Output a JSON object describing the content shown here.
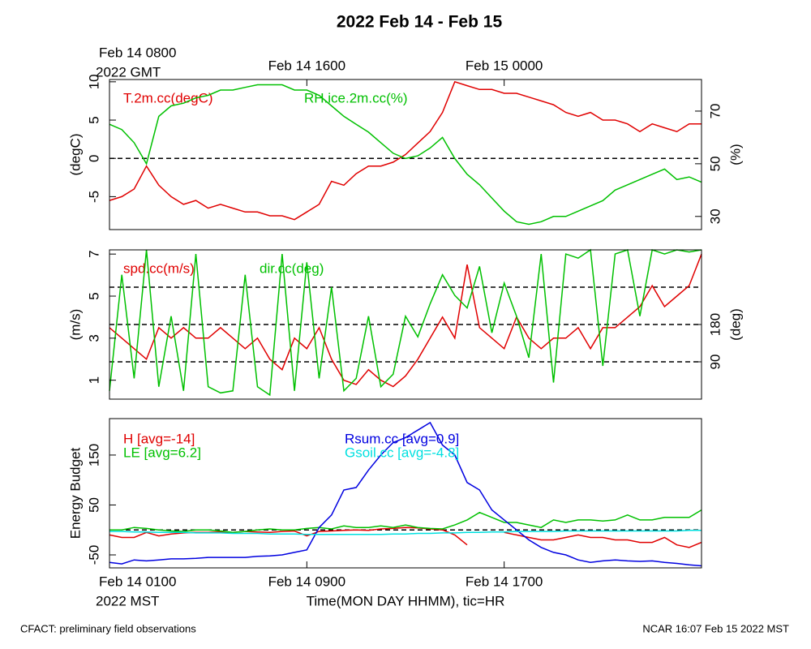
{
  "title": "2022 Feb 14 - Feb 15",
  "footer_left": "CFACT: preliminary field observations",
  "footer_right": "NCAR 16:07 Feb 15 2022 MST",
  "chart_data": [
    {
      "type": "line",
      "top_axis_note": "2022 GMT",
      "xlim": [
        0,
        24
      ],
      "x2ticks": [
        {
          "value": 0,
          "label": "Feb 14 0800"
        },
        {
          "value": 8,
          "label": "Feb 14 1600"
        },
        {
          "value": 16,
          "label": "Feb 15 0000"
        }
      ],
      "ylabel": "(degC)",
      "y2label": "(%)",
      "ylim": [
        -9.3,
        10.3
      ],
      "yticks": [
        -5,
        0,
        5,
        10
      ],
      "y2lim": [
        25,
        82
      ],
      "y2ticks": [
        30,
        50,
        70
      ],
      "hlines": [
        0
      ],
      "x": [
        0,
        0.5,
        1,
        1.5,
        2,
        2.5,
        3,
        3.5,
        4,
        4.5,
        5,
        5.5,
        6,
        6.5,
        7,
        7.5,
        8,
        8.5,
        9,
        9.5,
        10,
        10.5,
        11,
        11.5,
        12,
        12.5,
        13,
        13.5,
        14,
        14.5,
        15,
        15.5,
        16,
        16.5,
        17,
        17.5,
        18,
        18.5,
        19,
        19.5,
        20,
        20.5,
        21,
        21.5,
        22,
        22.5,
        23,
        23.5,
        24
      ],
      "series": [
        {
          "name": "T.2m.cc(degC)",
          "color": "#e00000",
          "values": [
            -5.5,
            -5,
            -4,
            -1,
            -3.5,
            -5,
            -6,
            -5.5,
            -6.5,
            -6,
            -6.5,
            -7,
            -7,
            -7.5,
            -7.5,
            -8,
            -7,
            -6,
            -3,
            -3.5,
            -2,
            -1,
            -1,
            -0.5,
            0.5,
            2,
            3.5,
            6,
            10,
            9.5,
            9,
            9,
            8.5,
            8.5,
            8,
            7.5,
            7,
            6,
            5.5,
            6,
            5,
            5,
            4.5,
            3.5,
            4.5,
            4,
            3.5,
            4.5,
            4.5
          ]
        },
        {
          "name": "RH.ice.2m.cc(%)",
          "color": "#00c000",
          "axis": "y2",
          "values": [
            65,
            63,
            58,
            50,
            68,
            72,
            73,
            75,
            76,
            78,
            78,
            79,
            80,
            80,
            80,
            78,
            78,
            76,
            72,
            68,
            65,
            62,
            58,
            54,
            52,
            53,
            56,
            60,
            52,
            46,
            42,
            37,
            32,
            28,
            27,
            28,
            30,
            30,
            32,
            34,
            36,
            40,
            42,
            44,
            46,
            48,
            44,
            45,
            43
          ]
        }
      ]
    },
    {
      "type": "line",
      "xlim": [
        0,
        24
      ],
      "ylabel": "(m/s)",
      "y2label": "(deg)",
      "ylim": [
        0.1,
        7.2
      ],
      "yticks": [
        1,
        3,
        5,
        7
      ],
      "y2lim": [
        0,
        360
      ],
      "y2ticks": [
        90,
        180
      ],
      "y2_hlines": [
        90,
        180,
        270
      ],
      "x": [
        0,
        0.5,
        1,
        1.5,
        2,
        2.5,
        3,
        3.5,
        4,
        4.5,
        5,
        5.5,
        6,
        6.5,
        7,
        7.5,
        8,
        8.5,
        9,
        9.5,
        10,
        10.5,
        11,
        11.5,
        12,
        12.5,
        13,
        13.5,
        14,
        14.5,
        15,
        15.5,
        16,
        16.5,
        17,
        17.5,
        18,
        18.5,
        19,
        19.5,
        20,
        20.5,
        21,
        21.5,
        22,
        22.5,
        23,
        23.5,
        24
      ],
      "series": [
        {
          "name": "spd.cc(m/s)",
          "color": "#e00000",
          "values": [
            3.5,
            3,
            2.5,
            2,
            3.5,
            3,
            3.5,
            3,
            3,
            3.5,
            3,
            2.5,
            3,
            2,
            1.5,
            3,
            2.5,
            3.5,
            2,
            1,
            0.8,
            1.5,
            1,
            0.7,
            1.2,
            2,
            3,
            4,
            3,
            6.5,
            3.5,
            3,
            2.5,
            4,
            3,
            2.5,
            3,
            3,
            3.5,
            2.5,
            3.5,
            3.5,
            4,
            4.5,
            5.5,
            4.5,
            5,
            5.5,
            7
          ]
        },
        {
          "name": "dir.cc(deg)",
          "color": "#00c000",
          "axis": "y2",
          "values": [
            20,
            300,
            50,
            360,
            30,
            200,
            20,
            350,
            30,
            15,
            20,
            300,
            30,
            10,
            350,
            20,
            330,
            50,
            270,
            20,
            50,
            200,
            30,
            60,
            200,
            150,
            230,
            300,
            250,
            220,
            320,
            160,
            280,
            200,
            100,
            350,
            40,
            350,
            340,
            360,
            80,
            350,
            360,
            200,
            360,
            350,
            360,
            355,
            360
          ]
        }
      ]
    },
    {
      "type": "line",
      "xlim": [
        0,
        24
      ],
      "xticks": [
        {
          "value": 0,
          "label": "Feb 14 0100"
        },
        {
          "value": 8,
          "label": "Feb 14 0900"
        },
        {
          "value": 16,
          "label": "Feb 14 1700"
        }
      ],
      "bottom_axis_note": "2022 MST",
      "xlabel": "Time(MON DAY HHMM), tic=HR",
      "ylabel": "Energy Budget",
      "ylim": [
        -76,
        223
      ],
      "yticks": [
        -50,
        50,
        150
      ],
      "hlines": [
        0
      ],
      "x": [
        0,
        0.5,
        1,
        1.5,
        2,
        2.5,
        3,
        3.5,
        4,
        4.5,
        5,
        5.5,
        6,
        6.5,
        7,
        7.5,
        8,
        8.5,
        9,
        9.5,
        10,
        10.5,
        11,
        11.5,
        12,
        12.5,
        13,
        13.5,
        14,
        14.5,
        15,
        15.5,
        16,
        16.5,
        17,
        17.5,
        18,
        18.5,
        19,
        19.5,
        20,
        20.5,
        21,
        21.5,
        22,
        22.5,
        23,
        23.5,
        24
      ],
      "series": [
        {
          "name": "H [avg=-14]",
          "color": "#e00000",
          "values": [
            -10,
            -15,
            -15,
            -5,
            -12,
            -8,
            -6,
            -5,
            -5,
            -4,
            -5,
            -3,
            -4,
            -5,
            -3,
            -2,
            -12,
            -3,
            -2,
            -1,
            0,
            -1,
            2,
            3,
            5,
            4,
            2,
            0,
            -10,
            -30,
            null,
            null,
            -5,
            -10,
            -15,
            -20,
            -20,
            -15,
            -10,
            -15,
            -15,
            -20,
            -20,
            -25,
            -25,
            -15,
            -30,
            -35,
            -25
          ]
        },
        {
          "name": "LE [avg=6.2]",
          "color": "#00c000",
          "values": [
            0,
            0,
            5,
            3,
            0,
            -2,
            -3,
            0,
            0,
            -2,
            -5,
            -3,
            0,
            2,
            0,
            0,
            3,
            5,
            2,
            8,
            5,
            5,
            8,
            5,
            10,
            5,
            3,
            2,
            10,
            20,
            35,
            25,
            15,
            15,
            10,
            5,
            20,
            15,
            20,
            20,
            18,
            20,
            30,
            20,
            20,
            25,
            25,
            25,
            40
          ]
        },
        {
          "name": "Rsum.cc [avg=0.9]",
          "color": "#0000e0",
          "values": [
            -65,
            -68,
            -60,
            -62,
            -60,
            -58,
            -58,
            -57,
            -55,
            -55,
            -55,
            -55,
            -53,
            -52,
            -50,
            -45,
            -40,
            5,
            30,
            80,
            85,
            120,
            150,
            175,
            185,
            200,
            215,
            170,
            150,
            95,
            80,
            40,
            20,
            0,
            -20,
            -35,
            -45,
            -50,
            -60,
            -65,
            -62,
            -60,
            -62,
            -63,
            -62,
            -65,
            -67,
            -70,
            -72
          ]
        },
        {
          "name": "Gsoil.cc [avg=-4.8]",
          "color": "#00e0e0",
          "values": [
            -3,
            -3,
            -4,
            -4,
            -5,
            -5,
            -5,
            -6,
            -6,
            -6,
            -7,
            -7,
            -7,
            -8,
            -8,
            -8,
            -9,
            -9,
            -9,
            -9,
            -9,
            -9,
            -9,
            -8,
            -8,
            -7,
            -7,
            -6,
            -6,
            -5,
            -5,
            -4,
            -4,
            -3,
            -3,
            -3,
            -3,
            -2,
            -2,
            -2,
            -2,
            -2,
            -2,
            -2,
            -2,
            -2,
            -2,
            -1,
            -1
          ]
        }
      ]
    }
  ]
}
